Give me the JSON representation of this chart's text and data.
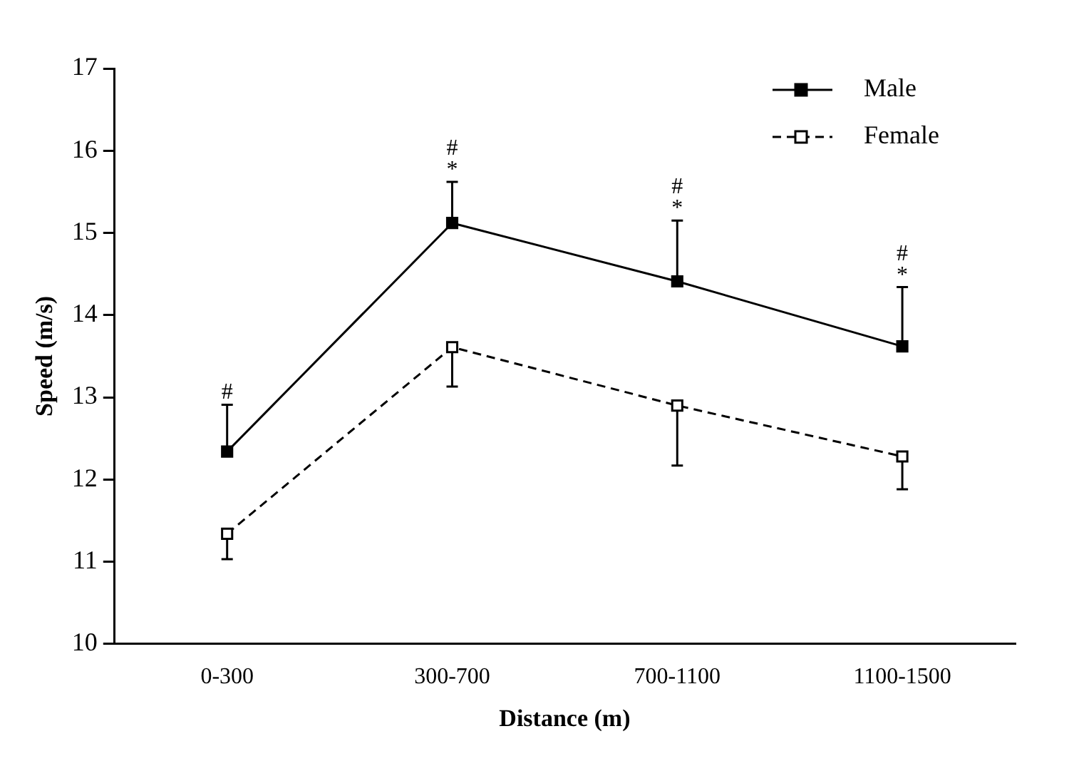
{
  "chart_data": {
    "type": "line",
    "xlabel": "Distance (m)",
    "ylabel": "Speed (m/s)",
    "categories": [
      "0-300",
      "300-700",
      "700-1100",
      "1100-1500"
    ],
    "series": [
      {
        "name": "Male",
        "color": "#000000",
        "line_style": "solid",
        "marker": "square",
        "values": [
          12.34,
          15.12,
          14.41,
          13.62
        ],
        "errors": [
          [
            12.34,
            12.91
          ],
          [
            15.12,
            15.62
          ],
          [
            14.41,
            15.15
          ],
          [
            13.62,
            14.34
          ]
        ]
      },
      {
        "name": "Female",
        "color": "#000000",
        "line_style": "dashed",
        "marker": "square",
        "values": [
          11.34,
          13.61,
          12.9,
          12.28
        ],
        "errors": [
          [
            11.03,
            11.34
          ],
          [
            13.13,
            13.61
          ],
          [
            12.17,
            12.9
          ],
          [
            11.88,
            12.28
          ]
        ]
      }
    ],
    "ylim": [
      10,
      17
    ],
    "yticks": [
      10,
      11,
      12,
      13,
      14,
      15,
      16,
      17
    ],
    "grid": false,
    "legend": "top right",
    "annotations": [
      {
        "text": "#",
        "x": "0-300",
        "y": 12.91
      },
      {
        "text": "#\n*",
        "x": "300-700",
        "y": 15.62
      },
      {
        "text": "#\n*",
        "x": "700-1100",
        "y": 15.15
      },
      {
        "text": "#\n*",
        "x": "1100-1500",
        "y": 14.34
      }
    ]
  }
}
